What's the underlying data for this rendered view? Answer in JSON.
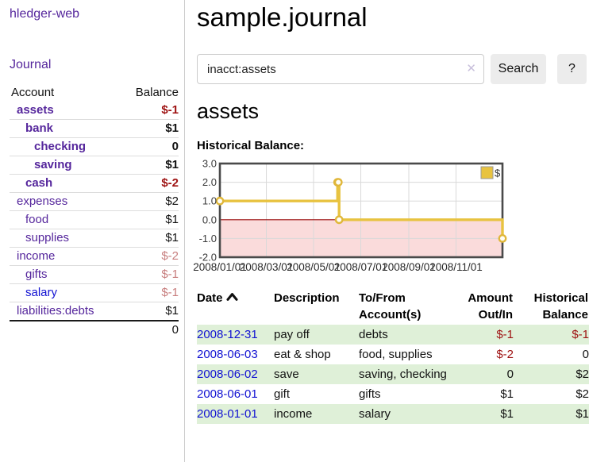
{
  "colors": {
    "link_purple": "#55269c",
    "link_blue": "#1212d2",
    "negative_strong": "#9e1212",
    "negative_muted": "#c77d7d",
    "row_green": "#dff0d8",
    "chart_gold": "#e8c340",
    "chart_negative_fill": "#fadbdb",
    "chart_zero_line": "#9c0d0d"
  },
  "sidebar": {
    "brand": "hledger-web",
    "journal_link": "Journal",
    "accounts_table": {
      "headers": {
        "account": "Account",
        "balance": "Balance"
      },
      "rows": [
        {
          "name": "assets",
          "indent": 1,
          "bold": true,
          "balance": "$-1",
          "balance_style": "neg-strong",
          "link_style": "purple"
        },
        {
          "name": "bank",
          "indent": 2,
          "bold": true,
          "balance": "$1",
          "balance_style": "normal",
          "link_style": "purple"
        },
        {
          "name": "checking",
          "indent": 3,
          "bold": true,
          "balance": "0",
          "balance_style": "normal",
          "link_style": "purple"
        },
        {
          "name": "saving",
          "indent": 3,
          "bold": true,
          "balance": "$1",
          "balance_style": "normal",
          "link_style": "purple"
        },
        {
          "name": "cash",
          "indent": 2,
          "bold": true,
          "balance": "$-2",
          "balance_style": "neg-strong",
          "link_style": "purple"
        },
        {
          "name": "expenses",
          "indent": 1,
          "bold": false,
          "balance": "$2",
          "balance_style": "normal",
          "link_style": "purple"
        },
        {
          "name": "food",
          "indent": 2,
          "bold": false,
          "balance": "$1",
          "balance_style": "normal",
          "link_style": "purple"
        },
        {
          "name": "supplies",
          "indent": 2,
          "bold": false,
          "balance": "$1",
          "balance_style": "normal",
          "link_style": "purple"
        },
        {
          "name": "income",
          "indent": 1,
          "bold": false,
          "balance": "$-2",
          "balance_style": "neg-muted",
          "link_style": "purple"
        },
        {
          "name": "gifts",
          "indent": 2,
          "bold": false,
          "balance": "$-1",
          "balance_style": "neg-muted",
          "link_style": "purple"
        },
        {
          "name": "salary",
          "indent": 2,
          "bold": false,
          "balance": "$-1",
          "balance_style": "neg-muted",
          "link_style": "blue"
        },
        {
          "name": "liabilities:debts",
          "indent": 1,
          "bold": false,
          "balance": "$1",
          "balance_style": "normal",
          "link_style": "purple"
        }
      ],
      "total": "0"
    }
  },
  "main": {
    "title": "sample.journal",
    "search": {
      "value": "inacct:assets",
      "clear_icon": "✕",
      "button": "Search",
      "help_button": "?"
    },
    "account_heading": "assets",
    "chart_title": "Historical Balance:"
  },
  "chart_data": {
    "type": "line",
    "step": true,
    "title": "Historical Balance",
    "legend": "$",
    "legend_position": "top-right",
    "grid": true,
    "ylim": [
      -2.0,
      3.0
    ],
    "yticks": [
      "3.0",
      "2.0",
      "1.0",
      "0.0",
      "-1.0",
      "-2.0"
    ],
    "ytick_values": [
      3,
      2,
      1,
      0,
      -1,
      -2
    ],
    "xrange": [
      "2008-01-01",
      "2008-12-31"
    ],
    "xticks": [
      {
        "date": "2008-01-01",
        "label": "2008/01/01"
      },
      {
        "date": "2008-03-01",
        "label": "2008/03/01"
      },
      {
        "date": "2008-05-01",
        "label": "2008/05/01"
      },
      {
        "date": "2008-07-01",
        "label": "2008/07/01"
      },
      {
        "date": "2008-09-01",
        "label": "2008/09/01"
      },
      {
        "date": "2008-11-01",
        "label": "2008/11/01"
      }
    ],
    "series": [
      {
        "name": "$",
        "points": [
          {
            "date": "2008-01-01",
            "value": 1
          },
          {
            "date": "2008-06-01",
            "value": 2
          },
          {
            "date": "2008-06-02",
            "value": 2
          },
          {
            "date": "2008-06-03",
            "value": 0
          },
          {
            "date": "2008-12-31",
            "value": -1
          }
        ]
      }
    ]
  },
  "register": {
    "headers": {
      "date": "Date",
      "description": "Description",
      "accounts": "To/From Account(s)",
      "amount": "Amount Out/In",
      "balance": "Historical Balance"
    },
    "sort": {
      "column": "date",
      "direction": "asc"
    },
    "rows": [
      {
        "date": "2008-12-31",
        "description": "pay off",
        "accounts": "debts",
        "amount": "$-1",
        "amount_neg": true,
        "balance": "$-1",
        "balance_neg": true
      },
      {
        "date": "2008-06-03",
        "description": "eat & shop",
        "accounts": "food, supplies",
        "amount": "$-2",
        "amount_neg": true,
        "balance": "0",
        "balance_neg": false
      },
      {
        "date": "2008-06-02",
        "description": "save",
        "accounts": "saving, checking",
        "amount": "0",
        "amount_neg": false,
        "balance": "$2",
        "balance_neg": false
      },
      {
        "date": "2008-06-01",
        "description": "gift",
        "accounts": "gifts",
        "amount": "$1",
        "amount_neg": false,
        "balance": "$2",
        "balance_neg": false
      },
      {
        "date": "2008-01-01",
        "description": "income",
        "accounts": "salary",
        "amount": "$1",
        "amount_neg": false,
        "balance": "$1",
        "balance_neg": false
      }
    ]
  }
}
